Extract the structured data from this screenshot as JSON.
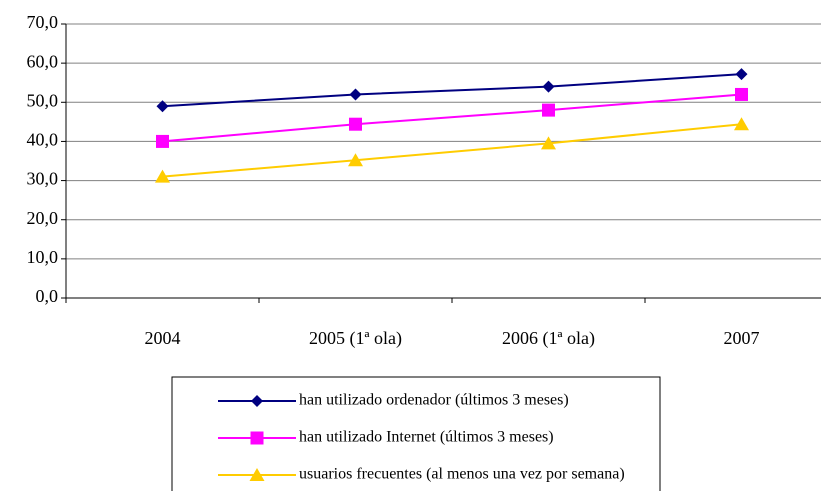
{
  "chart_data": {
    "type": "line",
    "categories": [
      "2004",
      "2005 (1ª ola)",
      "2006 (1ª ola)",
      "2007"
    ],
    "series": [
      {
        "name": "han utilizado ordenador (últimos 3 meses)",
        "color": "#000080",
        "marker": "diamond",
        "values": [
          49,
          52,
          54,
          57.2
        ]
      },
      {
        "name": "han utilizado Internet (últimos 3 meses)",
        "color": "#ff00ff",
        "marker": "square",
        "values": [
          40,
          44.4,
          48,
          52
        ]
      },
      {
        "name": "usuarios frecuentes (al menos una vez por semana)",
        "color": "#ffcc00",
        "marker": "triangle",
        "values": [
          31,
          35.2,
          39.5,
          44.4
        ]
      }
    ],
    "ylim": [
      0,
      70
    ],
    "yticks": [
      {
        "value": 0,
        "label": "0,0"
      },
      {
        "value": 10,
        "label": "10,0"
      },
      {
        "value": 20,
        "label": "20,0"
      },
      {
        "value": 30,
        "label": "30,0"
      },
      {
        "value": 40,
        "label": "40,0"
      },
      {
        "value": 50,
        "label": "50,0"
      },
      {
        "value": 60,
        "label": "60,0"
      },
      {
        "value": 70,
        "label": "70,0"
      }
    ],
    "grid": true,
    "legend": "bottom"
  }
}
